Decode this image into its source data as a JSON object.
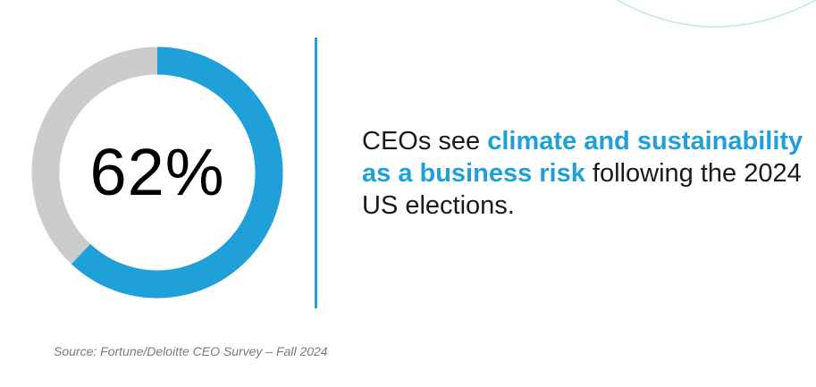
{
  "chart_data": {
    "type": "pie",
    "style": "donut",
    "percent_label": "62%",
    "slices": [
      {
        "value": 62,
        "color": "#1fa0d8"
      },
      {
        "value": 38,
        "color": "#cccccc"
      }
    ]
  },
  "statement": {
    "prefix": "CEOs see ",
    "highlight": "climate and sustainability as a business risk",
    "suffix": " following the 2024 US elections."
  },
  "source": "Source: Fortune/Deloitte CEO Survey – Fall 2024",
  "colors": {
    "accent": "#1fa0d8",
    "remainder": "#cccccc",
    "decorative_arc": "#bfe6e0"
  }
}
